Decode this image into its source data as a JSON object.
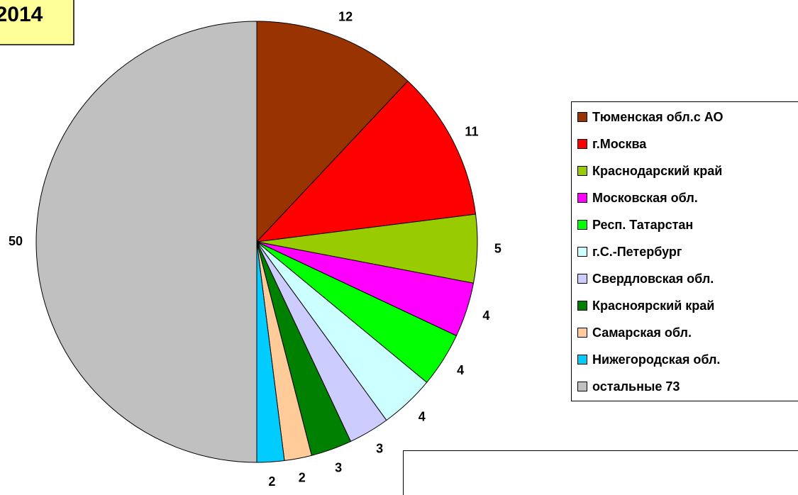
{
  "chart_data": {
    "type": "pie",
    "title": "2014",
    "categories": [
      "Тюменская обл.с АО",
      "г.Москва",
      "Краснодарский край",
      "Московская обл.",
      "Респ. Татарстан",
      "г.С.-Петербург",
      "Свердловская обл.",
      "Красноярский край",
      "Самарская обл.",
      "Нижегородская обл.",
      "остальные 73"
    ],
    "values": [
      12,
      11,
      5,
      4,
      4,
      4,
      3,
      3,
      2,
      2,
      50
    ],
    "colors": [
      "#993300",
      "#ff0000",
      "#99cc00",
      "#ff00ff",
      "#00ff00",
      "#ccffff",
      "#ccccff",
      "#008000",
      "#ffcc99",
      "#00ccff",
      "#c0c0c0"
    ]
  }
}
